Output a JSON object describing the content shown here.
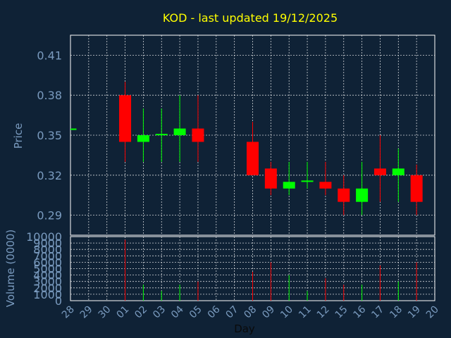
{
  "colors": {
    "background": "#0f2236",
    "plot_background": "#0f2236",
    "grid": "#ffffff",
    "axis_text": "#7a9bbf",
    "title": "#ffff00",
    "up": "#00ff00",
    "down": "#ff0000",
    "frame": "#ffffff"
  },
  "chart_data": [
    {
      "type": "candlestick",
      "title": "KOD - last updated 19/12/2025",
      "ylabel": "Price",
      "ylim": [
        0.275,
        0.425
      ],
      "yticks": [
        "0.29",
        "0.32",
        "0.35",
        "0.38",
        "0.41"
      ],
      "ytick_values": [
        0.29,
        0.32,
        0.35,
        0.38,
        0.41
      ],
      "grid": true,
      "candles": [
        {
          "day": "28",
          "open": 0.355,
          "high": 0.355,
          "low": 0.355,
          "close": 0.355
        },
        {
          "day": "01",
          "open": 0.38,
          "high": 0.39,
          "low": 0.33,
          "close": 0.345
        },
        {
          "day": "02",
          "open": 0.345,
          "high": 0.37,
          "low": 0.33,
          "close": 0.35
        },
        {
          "day": "03",
          "open": 0.35,
          "high": 0.37,
          "low": 0.33,
          "close": 0.351
        },
        {
          "day": "04",
          "open": 0.35,
          "high": 0.38,
          "low": 0.33,
          "close": 0.355
        },
        {
          "day": "05",
          "open": 0.355,
          "high": 0.38,
          "low": 0.33,
          "close": 0.345
        },
        {
          "day": "08",
          "open": 0.345,
          "high": 0.36,
          "low": 0.32,
          "close": 0.32
        },
        {
          "day": "09",
          "open": 0.325,
          "high": 0.33,
          "low": 0.305,
          "close": 0.31
        },
        {
          "day": "10",
          "open": 0.31,
          "high": 0.33,
          "low": 0.305,
          "close": 0.315
        },
        {
          "day": "11",
          "open": 0.315,
          "high": 0.33,
          "low": 0.31,
          "close": 0.316
        },
        {
          "day": "12",
          "open": 0.315,
          "high": 0.33,
          "low": 0.305,
          "close": 0.31
        },
        {
          "day": "15",
          "open": 0.31,
          "high": 0.32,
          "low": 0.29,
          "close": 0.3
        },
        {
          "day": "16",
          "open": 0.3,
          "high": 0.33,
          "low": 0.29,
          "close": 0.31
        },
        {
          "day": "17",
          "open": 0.325,
          "high": 0.35,
          "low": 0.3,
          "close": 0.32
        },
        {
          "day": "18",
          "open": 0.32,
          "high": 0.34,
          "low": 0.3,
          "close": 0.325
        },
        {
          "day": "19",
          "open": 0.32,
          "high": 0.328,
          "low": 0.29,
          "close": 0.3
        }
      ]
    },
    {
      "type": "bar",
      "ylabel": "Volume (0000)",
      "xlabel": "Day",
      "ylim": [
        0,
        10000
      ],
      "yticks": [
        "0",
        "1000",
        "2000",
        "3000",
        "4000",
        "5000",
        "6000",
        "7000",
        "8000",
        "9000",
        "10000"
      ],
      "categories": [
        "28",
        "29",
        "30",
        "01",
        "02",
        "03",
        "04",
        "05",
        "06",
        "07",
        "08",
        "09",
        "10",
        "11",
        "12",
        "15",
        "16",
        "17",
        "18",
        "19",
        "20"
      ],
      "volumes": [
        {
          "day": "01",
          "value": 9500,
          "dir": "down"
        },
        {
          "day": "02",
          "value": 2500,
          "dir": "up"
        },
        {
          "day": "03",
          "value": 1500,
          "dir": "up"
        },
        {
          "day": "04",
          "value": 2500,
          "dir": "up"
        },
        {
          "day": "05",
          "value": 3000,
          "dir": "down"
        },
        {
          "day": "08",
          "value": 4500,
          "dir": "down"
        },
        {
          "day": "09",
          "value": 6000,
          "dir": "down"
        },
        {
          "day": "10",
          "value": 4000,
          "dir": "up"
        },
        {
          "day": "11",
          "value": 1500,
          "dir": "up"
        },
        {
          "day": "12",
          "value": 3500,
          "dir": "down"
        },
        {
          "day": "15",
          "value": 2500,
          "dir": "down"
        },
        {
          "day": "16",
          "value": 2500,
          "dir": "up"
        },
        {
          "day": "17",
          "value": 5500,
          "dir": "down"
        },
        {
          "day": "18",
          "value": 3000,
          "dir": "up"
        },
        {
          "day": "19",
          "value": 6000,
          "dir": "down"
        }
      ]
    }
  ]
}
